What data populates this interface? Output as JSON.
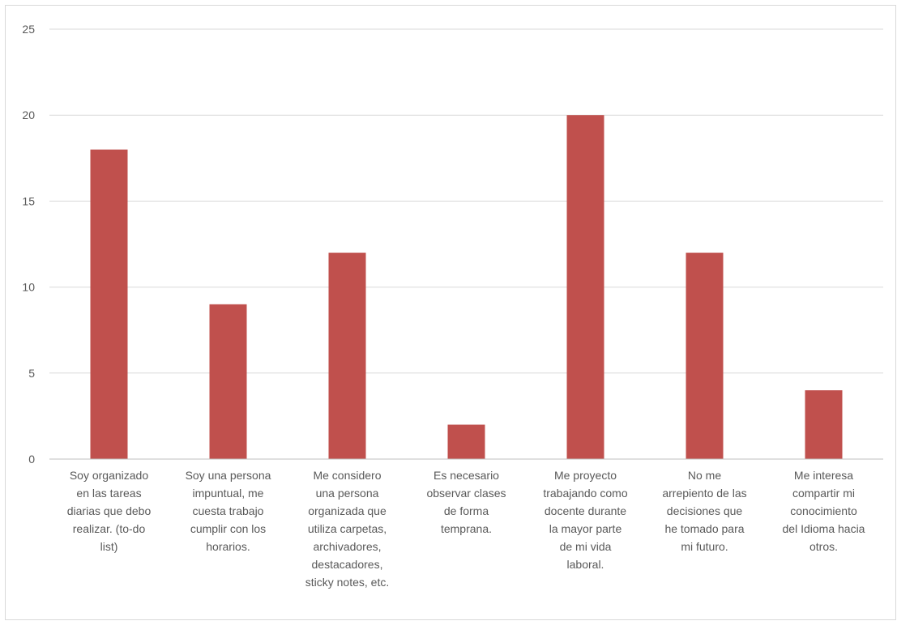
{
  "chart_data": {
    "type": "bar",
    "categories": [
      "Soy organizado en las tareas diarias que debo realizar. (to-do list)",
      "Soy una persona impuntual, me cuesta trabajo cumplir con los horarios.",
      "Me considero una persona organizada que utiliza carpetas, archivadores, destacadores, sticky notes, etc.",
      "Es necesario observar clases de forma temprana.",
      "Me proyecto trabajando como docente durante la mayor parte de mi vida laboral.",
      "No me arrepiento de las decisiones que he tomado para mi futuro.",
      "Me interesa compartir mi conocimiento del Idioma hacia otros."
    ],
    "category_lines": [
      [
        "Soy organizado",
        "en las tareas",
        "diarias que debo",
        "realizar. (to-do",
        "list)"
      ],
      [
        "Soy una persona",
        "impuntual, me",
        "cuesta trabajo",
        "cumplir con los",
        "horarios."
      ],
      [
        "Me considero",
        "una persona",
        "organizada que",
        "utiliza carpetas,",
        "archivadores,",
        "destacadores,",
        "sticky notes, etc."
      ],
      [
        "Es necesario",
        "observar clases",
        "de forma",
        "temprana."
      ],
      [
        "Me proyecto",
        "trabajando como",
        "docente durante",
        "la mayor parte",
        "de mi vida",
        "laboral."
      ],
      [
        "No me",
        "arrepiento de las",
        "decisiones que",
        "he tomado para",
        "mi futuro."
      ],
      [
        "Me interesa",
        "compartir mi",
        "conocimiento",
        "del Idioma hacia",
        "otros."
      ]
    ],
    "values": [
      18,
      9,
      12,
      2,
      20,
      12,
      4
    ],
    "title": "",
    "xlabel": "",
    "ylabel": "",
    "ylim": [
      0,
      25
    ],
    "yticks": [
      "0",
      "5",
      "10",
      "15",
      "20",
      "25"
    ],
    "grid": true,
    "legend": "none",
    "colors": {
      "bar": "#c0504d",
      "grid": "#d9d9d9",
      "axis": "#bfbfbf",
      "text": "#595959"
    }
  }
}
